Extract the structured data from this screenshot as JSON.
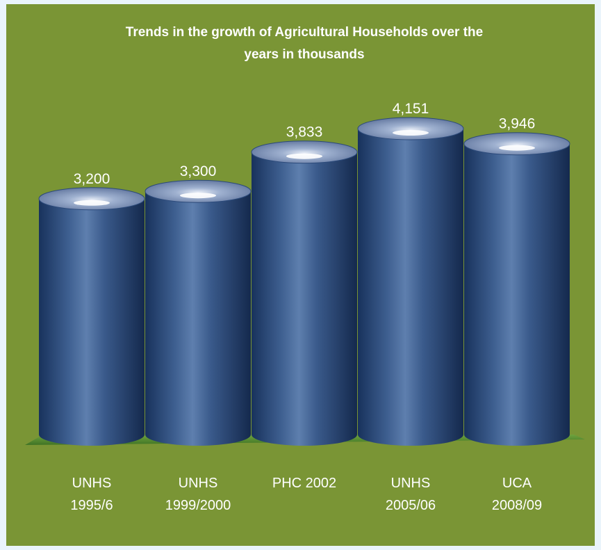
{
  "colors": {
    "background": "#7a9535",
    "bar": "#1f3d6e",
    "bar_top": "#8fa3c8",
    "floor": "#4e8a2c",
    "text": "#ffffff"
  },
  "chart_data": {
    "type": "bar",
    "title": "Trends in the growth of Agricultural Households over the years in thousands",
    "title_lines": [
      "Trends in the growth of Agricultural Households over the",
      "years in thousands"
    ],
    "categories": [
      [
        "UNHS",
        "1995/6"
      ],
      [
        "UNHS",
        "1999/2000"
      ],
      [
        "PHC 2002"
      ],
      [
        "UNHS",
        "2005/06"
      ],
      [
        "UCA",
        "2008/09"
      ]
    ],
    "values": [
      3200,
      3300,
      3833,
      4151,
      3946
    ],
    "value_labels": [
      "3,200",
      "3,300",
      "3,833",
      "4,151",
      "3,946"
    ],
    "xlabel": "",
    "ylabel": "",
    "ylim": [
      0,
      4151
    ],
    "grid": false,
    "legend": "none",
    "style": "3d-cylinder"
  }
}
